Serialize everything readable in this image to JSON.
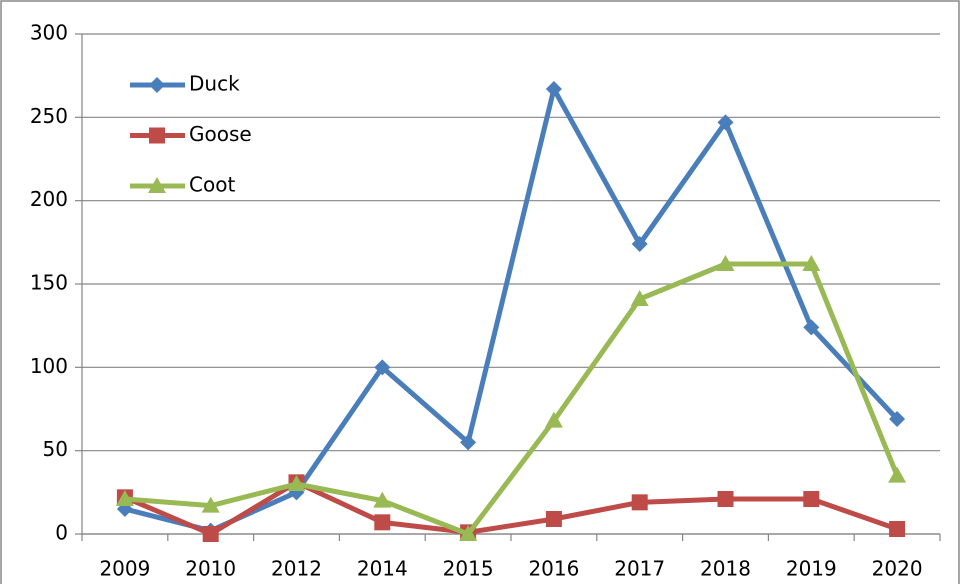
{
  "chart_data": {
    "type": "line",
    "categories": [
      "2009",
      "2010",
      "2012",
      "2014",
      "2015",
      "2016",
      "2017",
      "2018",
      "2019",
      "2020"
    ],
    "series": [
      {
        "name": "Duck",
        "color": "#4a7ebb",
        "marker": "diamond",
        "values": [
          15,
          2,
          25,
          100,
          55,
          267,
          174,
          247,
          124,
          69
        ]
      },
      {
        "name": "Goose",
        "color": "#be4b48",
        "marker": "square",
        "values": [
          22,
          0,
          31,
          7,
          1,
          9,
          19,
          21,
          21,
          3
        ]
      },
      {
        "name": "Coot",
        "color": "#98b954",
        "marker": "triangle",
        "values": [
          21,
          17,
          30,
          20,
          0,
          68,
          141,
          162,
          162,
          35
        ]
      }
    ],
    "ylim": [
      0,
      300
    ],
    "yticks": [
      0,
      50,
      100,
      150,
      200,
      250,
      300
    ],
    "grid": true,
    "legend": "top-left"
  }
}
